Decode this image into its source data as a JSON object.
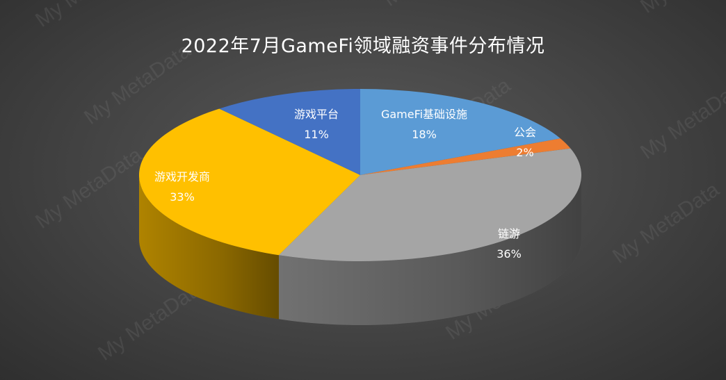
{
  "chart_data": {
    "type": "pie",
    "title": "2022年7月GameFi领域融资事件分布情况",
    "slices": [
      {
        "label": "GameFi基础设施",
        "value": 18,
        "percent_label": "18%",
        "color": "#5b9bd5"
      },
      {
        "label": "公会",
        "value": 2,
        "percent_label": "2%",
        "color": "#ed7d31"
      },
      {
        "label": "链游",
        "value": 36,
        "percent_label": "36%",
        "color": "#a5a5a5"
      },
      {
        "label": "游戏开发商",
        "value": 33,
        "percent_label": "33%",
        "color": "#ffc000"
      },
      {
        "label": "游戏平台",
        "value": 11,
        "percent_label": "11%",
        "color": "#4472c4"
      }
    ],
    "legend": "none"
  },
  "watermark": "My MetaData"
}
